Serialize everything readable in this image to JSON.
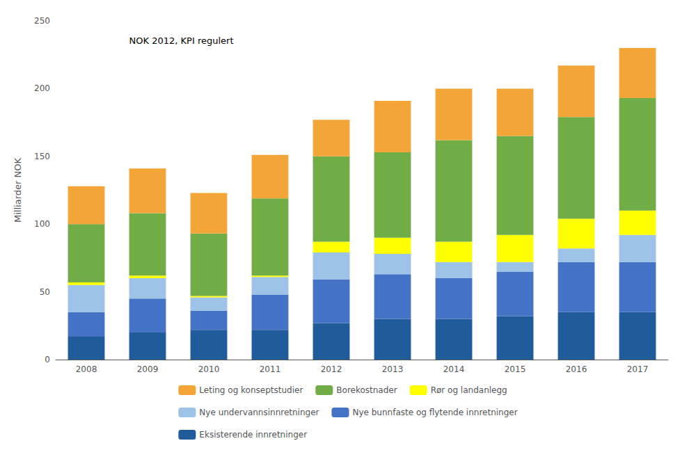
{
  "chart_data": {
    "type": "bar",
    "stacked": true,
    "categories": [
      "2008",
      "2009",
      "2010",
      "2011",
      "2012",
      "2013",
      "2014",
      "2015",
      "2016",
      "2017"
    ],
    "series": [
      {
        "name": "Eksisterende innretninger",
        "color": "#1F5C99",
        "values": [
          17,
          20,
          22,
          22,
          27,
          30,
          30,
          32,
          35,
          35
        ]
      },
      {
        "name": "Nye bunnfaste og flytende innretninger",
        "color": "#4472C4",
        "values": [
          18,
          25,
          14,
          26,
          32,
          33,
          30,
          33,
          37,
          37
        ]
      },
      {
        "name": "Nye undervannsinnretninger",
        "color": "#9DC3E6",
        "values": [
          20,
          15,
          10,
          13,
          20,
          15,
          12,
          7,
          10,
          20
        ]
      },
      {
        "name": "Rør og landanlegg",
        "color": "#FFFF00",
        "values": [
          2,
          2,
          1,
          1,
          8,
          12,
          15,
          20,
          22,
          18
        ]
      },
      {
        "name": "Borekostnader",
        "color": "#70AD47",
        "values": [
          43,
          46,
          46,
          57,
          63,
          63,
          75,
          73,
          75,
          83
        ]
      },
      {
        "name": "Leting og konseptstudier",
        "color": "#F4A537",
        "values": [
          28,
          33,
          30,
          32,
          27,
          38,
          38,
          35,
          38,
          37
        ]
      }
    ],
    "ylabel": "Milliarder NOK",
    "annotation": "NOK 2012, KPI regulert",
    "ylim": [
      0,
      250
    ],
    "yticks": [
      0,
      50,
      100,
      150,
      200,
      250
    ],
    "grid": false,
    "legend": "bottom"
  }
}
